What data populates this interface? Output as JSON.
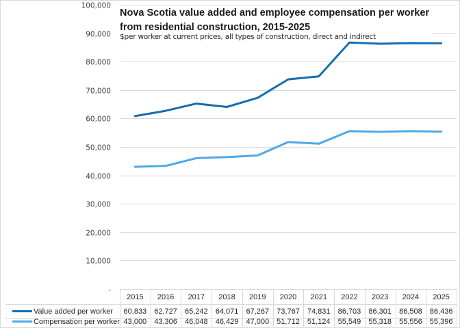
{
  "chart_data": {
    "type": "line",
    "title": "Nova Scotia value added and employee compensation per worker from residential construction, 2015-2025",
    "title_lines": [
      "Nova Scotia value added and employee compensation per worker",
      "from residential construction, 2015-2025"
    ],
    "subtitle": "$per worker at current prices, all types of construction, direct and indirect",
    "xlabel": "",
    "ylabel": "",
    "categories": [
      "2015",
      "2016",
      "2017",
      "2018",
      "2019",
      "2020",
      "2021",
      "2022",
      "2023",
      "2024",
      "2025"
    ],
    "series": [
      {
        "name": "Value added per worker",
        "color": "#156DB0",
        "values": [
          60833,
          62727,
          65242,
          64071,
          67267,
          73767,
          74831,
          86703,
          86301,
          86508,
          86436
        ],
        "labels": [
          "60,833",
          "62,727",
          "65,242",
          "64,071",
          "67,267",
          "73,767",
          "74,831",
          "86,703",
          "86,301",
          "86,508",
          "86,436"
        ]
      },
      {
        "name": "Compensation per worker",
        "color": "#4EA8E8",
        "values": [
          43000,
          43306,
          46048,
          46429,
          47000,
          51712,
          51124,
          55549,
          55318,
          55556,
          55396
        ],
        "labels": [
          "43,000",
          "43,306",
          "46,048",
          "46,429",
          "47,000",
          "51,712",
          "51,124",
          "55,549",
          "55,318",
          "55,556",
          "55,396"
        ]
      }
    ],
    "ylim": [
      0,
      100000
    ],
    "yticks": [
      0,
      10000,
      20000,
      30000,
      40000,
      50000,
      60000,
      70000,
      80000,
      90000,
      100000
    ],
    "ytick_labels": [
      "-",
      "10,000",
      "20,000",
      "30,000",
      "40,000",
      "50,000",
      "60,000",
      "70,000",
      "80,000",
      "90,000",
      "100,000"
    ],
    "grid": true,
    "legend": "bottom data table"
  }
}
